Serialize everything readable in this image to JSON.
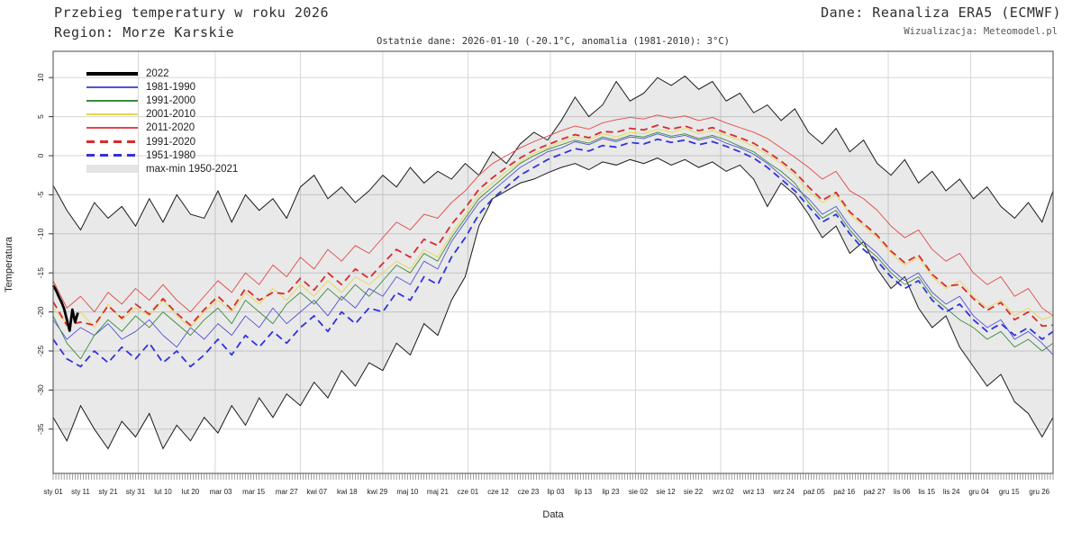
{
  "header": {
    "title_line1": "Przebieg temperatury w roku 2026",
    "title_line2": "Region: Morze Karskie",
    "source": "Dane: Reanaliza ERA5 (ECMWF)",
    "credit": "Wizualizacja: Meteomodel.pl"
  },
  "annotation": "Ostatnie dane: 2026-01-10 (-20.1°C, anomalia (1981-2010): 3°C)",
  "axes": {
    "ylabel": "Temperatura",
    "xlabel": "Data",
    "yticks": [
      10,
      5,
      0,
      -5,
      -10,
      -15,
      -20,
      -25,
      -30,
      -35
    ],
    "month_start_days": [
      32,
      60,
      91,
      121,
      152,
      182,
      213,
      244,
      274,
      305,
      335
    ],
    "xticks": [
      {
        "label": "sty 01",
        "day": 1
      },
      {
        "label": "sty 11",
        "day": 11
      },
      {
        "label": "sty 21",
        "day": 21
      },
      {
        "label": "sty 31",
        "day": 31
      },
      {
        "label": "lut 10",
        "day": 41
      },
      {
        "label": "lut 20",
        "day": 51
      },
      {
        "label": "mar 03",
        "day": 62
      },
      {
        "label": "mar 15",
        "day": 74
      },
      {
        "label": "mar 27",
        "day": 86
      },
      {
        "label": "kwi 07",
        "day": 97
      },
      {
        "label": "kwi 18",
        "day": 108
      },
      {
        "label": "kwi 29",
        "day": 119
      },
      {
        "label": "maj 10",
        "day": 130
      },
      {
        "label": "maj 21",
        "day": 141
      },
      {
        "label": "cze 01",
        "day": 152
      },
      {
        "label": "cze 12",
        "day": 163
      },
      {
        "label": "cze 23",
        "day": 174
      },
      {
        "label": "lip 03",
        "day": 184
      },
      {
        "label": "lip 13",
        "day": 194
      },
      {
        "label": "lip 23",
        "day": 204
      },
      {
        "label": "sie 02",
        "day": 214
      },
      {
        "label": "sie 12",
        "day": 224
      },
      {
        "label": "sie 22",
        "day": 234
      },
      {
        "label": "wrz 02",
        "day": 245
      },
      {
        "label": "wrz 13",
        "day": 256
      },
      {
        "label": "wrz 24",
        "day": 267
      },
      {
        "label": "paź 05",
        "day": 278
      },
      {
        "label": "paź 16",
        "day": 289
      },
      {
        "label": "paź 27",
        "day": 300
      },
      {
        "label": "lis 06",
        "day": 310
      },
      {
        "label": "lis 15",
        "day": 319
      },
      {
        "label": "lis 24",
        "day": 328
      },
      {
        "label": "gru 04",
        "day": 338
      },
      {
        "label": "gru 15",
        "day": 349
      },
      {
        "label": "gru 26",
        "day": 360
      }
    ]
  },
  "legend": [
    {
      "label": "2022",
      "color": "#000000",
      "style": "solid-thick"
    },
    {
      "label": "1981-1990",
      "color": "#5252d6",
      "style": "solid"
    },
    {
      "label": "1991-2000",
      "color": "#3a8a3c",
      "style": "solid"
    },
    {
      "label": "2001-2010",
      "color": "#e6d84f",
      "style": "solid"
    },
    {
      "label": "2011-2020",
      "color": "#e04848",
      "style": "solid"
    },
    {
      "label": "1991-2020",
      "color": "#d92b2b",
      "style": "dashed"
    },
    {
      "label": "1951-1980",
      "color": "#3232dd",
      "style": "dashed"
    },
    {
      "label": "max-min 1950-2021",
      "color": "#e4e4e4",
      "style": "band"
    }
  ],
  "chart_data": {
    "type": "line",
    "title": "Przebieg temperatury w roku 2026",
    "subtitle": "Region: Morze Karskie",
    "xlabel": "Data",
    "ylabel": "Temperatura",
    "x_unit": "day-of-year",
    "ylim": [
      -41,
      13
    ],
    "grid": "on",
    "legend_position": "upper-left",
    "x_days": [
      1,
      6,
      11,
      16,
      21,
      26,
      31,
      36,
      41,
      46,
      51,
      56,
      61,
      66,
      71,
      76,
      81,
      86,
      91,
      96,
      101,
      106,
      111,
      116,
      121,
      126,
      131,
      136,
      141,
      146,
      151,
      156,
      161,
      166,
      171,
      176,
      181,
      186,
      191,
      196,
      201,
      206,
      211,
      216,
      221,
      226,
      231,
      236,
      241,
      246,
      251,
      256,
      261,
      266,
      271,
      276,
      281,
      286,
      291,
      296,
      301,
      306,
      311,
      316,
      321,
      326,
      331,
      336,
      341,
      346,
      351,
      356,
      361,
      365
    ],
    "band": {
      "name": "max-min 1950-2021",
      "max": [
        -3.8,
        -7,
        -9.5,
        -6,
        -8,
        -6.5,
        -9,
        -5.5,
        -8.5,
        -5,
        -7.5,
        -8,
        -4.5,
        -8.5,
        -5,
        -7,
        -5.5,
        -8,
        -4,
        -2.5,
        -5.5,
        -4,
        -6,
        -4.5,
        -2.5,
        -4,
        -1.5,
        -3.5,
        -2,
        -3,
        -1,
        -2.5,
        0.5,
        -1,
        1.5,
        3,
        2,
        4.5,
        7.5,
        5,
        6.5,
        9.5,
        7,
        8,
        10,
        9,
        10.2,
        8.5,
        9.5,
        7,
        8,
        5.5,
        6.5,
        4.5,
        6,
        3,
        1.5,
        3.5,
        0.5,
        2,
        -1,
        -2.5,
        -0.5,
        -3.5,
        -2,
        -4.5,
        -3,
        -5.5,
        -4,
        -6.5,
        -8,
        -6,
        -8.5,
        -4.5
      ],
      "min": [
        -33.5,
        -36.5,
        -32,
        -35,
        -37.5,
        -34,
        -36,
        -33,
        -37.5,
        -34.5,
        -36.5,
        -33.5,
        -35.5,
        -32,
        -34.5,
        -31,
        -33.5,
        -30.5,
        -32,
        -29,
        -31,
        -27.5,
        -29.5,
        -26.5,
        -27.5,
        -24,
        -25.5,
        -21.5,
        -23,
        -18.5,
        -15.5,
        -9,
        -5.5,
        -4.5,
        -3.5,
        -3,
        -2.2,
        -1.5,
        -1,
        -1.8,
        -0.8,
        -1.2,
        -0.5,
        -1,
        -0.3,
        -1.2,
        -0.5,
        -1.5,
        -0.8,
        -2,
        -1.2,
        -3,
        -6.5,
        -3.5,
        -5,
        -7.5,
        -10.5,
        -9,
        -12.5,
        -11,
        -14.5,
        -17,
        -15.5,
        -19.5,
        -22,
        -20.5,
        -24.5,
        -27,
        -29.5,
        -28,
        -31.5,
        -33,
        -36,
        -33.5
      ]
    },
    "series": [
      {
        "name": "1981-1990",
        "color": "#5252d6",
        "style": "solid",
        "values": [
          -21,
          -23.5,
          -22,
          -23,
          -21.5,
          -23.5,
          -22.5,
          -21,
          -23,
          -24.5,
          -22,
          -23.5,
          -21.5,
          -23,
          -20.5,
          -22,
          -19.5,
          -21.5,
          -20,
          -18.5,
          -20.5,
          -18,
          -19.5,
          -17,
          -18,
          -15.5,
          -16.5,
          -13.5,
          -14.5,
          -11,
          -8.5,
          -6,
          -4.5,
          -3,
          -1.5,
          -0.5,
          0.5,
          1,
          1.8,
          1.4,
          2.2,
          1.8,
          2.4,
          2.2,
          2.8,
          2.3,
          2.6,
          2,
          2.4,
          1.6,
          1,
          0.2,
          -1,
          -2.5,
          -4,
          -5.5,
          -7.5,
          -6.5,
          -9,
          -11,
          -12.5,
          -14.5,
          -16,
          -15,
          -17.5,
          -19,
          -18,
          -20.5,
          -22,
          -21,
          -23.5,
          -22.5,
          -24,
          -25.5
        ]
      },
      {
        "name": "1991-2000",
        "color": "#3a8a3c",
        "style": "solid",
        "values": [
          -20.5,
          -24,
          -26,
          -23,
          -21,
          -22.5,
          -20.5,
          -22,
          -20,
          -21.5,
          -23,
          -21,
          -19.5,
          -21.5,
          -18.5,
          -20,
          -21.5,
          -19,
          -17.5,
          -19,
          -17,
          -18.5,
          -16.5,
          -18,
          -16,
          -14,
          -15,
          -12.5,
          -13.5,
          -10.5,
          -8,
          -5.5,
          -4,
          -2.5,
          -1,
          0,
          0.8,
          1.4,
          2,
          1.6,
          2.4,
          2,
          2.6,
          2.4,
          3,
          2.5,
          2.8,
          2.2,
          2.6,
          2,
          1.2,
          0.5,
          -0.8,
          -2,
          -3.5,
          -6,
          -8,
          -7,
          -9.5,
          -11.5,
          -13,
          -15,
          -16.5,
          -15.5,
          -18,
          -19.5,
          -21,
          -22,
          -23.5,
          -22.5,
          -24.5,
          -23.5,
          -25,
          -24
        ]
      },
      {
        "name": "2001-2010",
        "color": "#e6d84f",
        "style": "solid",
        "values": [
          -19.5,
          -21.5,
          -20,
          -22,
          -19,
          -21,
          -19.5,
          -20.5,
          -18.5,
          -20.5,
          -22,
          -20,
          -18.5,
          -20,
          -17.5,
          -19,
          -17,
          -18.5,
          -16.5,
          -18,
          -16,
          -17.5,
          -15.5,
          -16.5,
          -15,
          -13.5,
          -14.5,
          -12,
          -13,
          -10,
          -7.5,
          -5,
          -3.5,
          -2,
          -0.8,
          0.3,
          1,
          1.8,
          2.4,
          2,
          2.8,
          2.4,
          3,
          2.8,
          3.4,
          3,
          3.5,
          2.8,
          3.2,
          2.6,
          2,
          1.2,
          0.2,
          -1,
          -2.5,
          -4.5,
          -6,
          -5,
          -7.5,
          -9,
          -10.5,
          -12.5,
          -14,
          -13,
          -15.5,
          -17,
          -16,
          -18,
          -19.5,
          -18.5,
          -20.5,
          -19.5,
          -21,
          -20.5
        ]
      },
      {
        "name": "2011-2020",
        "color": "#e04848",
        "style": "solid",
        "values": [
          -16,
          -19.5,
          -18,
          -20,
          -17.5,
          -19,
          -17,
          -18.5,
          -16.5,
          -18.5,
          -20,
          -18,
          -16,
          -17.5,
          -15,
          -16.5,
          -14,
          -15.5,
          -13,
          -14.5,
          -12,
          -13.5,
          -11.5,
          -12.5,
          -10.5,
          -8.5,
          -9.5,
          -7.5,
          -8,
          -6,
          -4.5,
          -2.5,
          -1,
          0,
          1,
          1.8,
          2.5,
          3.2,
          3.8,
          3.4,
          4.2,
          4.6,
          4.9,
          4.7,
          5.2,
          4.8,
          5.1,
          4.5,
          4.9,
          4.2,
          3.6,
          3,
          2.2,
          1,
          -0.2,
          -1.5,
          -3,
          -2,
          -4.5,
          -5.5,
          -7,
          -9,
          -10.5,
          -9.5,
          -12,
          -13.5,
          -12.5,
          -15,
          -16.5,
          -15.5,
          -18,
          -17,
          -19.5,
          -20.5
        ]
      },
      {
        "name": "1991-2020",
        "color": "#d92b2b",
        "style": "dashed",
        "values": [
          -18.7,
          -21.7,
          -21.3,
          -21.7,
          -19.2,
          -20.8,
          -19,
          -20.3,
          -18.3,
          -20.2,
          -21.7,
          -19.7,
          -18,
          -19.7,
          -17,
          -18.5,
          -17.5,
          -17.7,
          -15.7,
          -17.2,
          -15,
          -16.5,
          -14.5,
          -15.7,
          -13.8,
          -12,
          -13,
          -10.7,
          -11.5,
          -8.8,
          -6.7,
          -4.3,
          -2.8,
          -1.5,
          -0.3,
          0.7,
          1.4,
          2.1,
          2.7,
          2.3,
          3.1,
          3,
          3.5,
          3.3,
          3.9,
          3.4,
          3.8,
          3.2,
          3.6,
          2.9,
          2.3,
          1.6,
          0.5,
          -0.7,
          -2.1,
          -4,
          -5.7,
          -4.7,
          -7.2,
          -8.7,
          -10.2,
          -12.2,
          -13.7,
          -12.7,
          -15.2,
          -16.7,
          -16.5,
          -18.3,
          -19.8,
          -18.8,
          -21,
          -20,
          -21.8,
          -21.7
        ]
      },
      {
        "name": "1951-1980",
        "color": "#3232dd",
        "style": "dashed",
        "values": [
          -23.5,
          -26,
          -27,
          -25,
          -26.5,
          -24.5,
          -26,
          -24,
          -26.5,
          -25,
          -27,
          -25.5,
          -23.5,
          -25.5,
          -23,
          -24.5,
          -22.5,
          -24,
          -22,
          -20.5,
          -22.5,
          -20,
          -21.5,
          -19.5,
          -20,
          -17.5,
          -18.5,
          -15.5,
          -16.5,
          -13,
          -10.5,
          -7.5,
          -5.5,
          -4,
          -2.5,
          -1.5,
          -0.5,
          0.2,
          0.9,
          0.6,
          1.3,
          1.1,
          1.7,
          1.5,
          2.1,
          1.7,
          2,
          1.4,
          1.8,
          1.2,
          0.5,
          -0.3,
          -1.5,
          -3,
          -4.5,
          -6.5,
          -8.5,
          -7.5,
          -10,
          -12,
          -13.5,
          -15.5,
          -17,
          -16,
          -18.5,
          -20,
          -19,
          -21,
          -22.5,
          -21.5,
          -23,
          -22,
          -23.5,
          -22.5
        ]
      },
      {
        "name": "2022",
        "color": "#000000",
        "style": "solid-thick",
        "days": [
          1,
          2,
          3,
          4,
          5,
          6,
          7,
          8,
          9,
          10
        ],
        "values": [
          -16.6,
          -17.2,
          -18.0,
          -18.7,
          -19.6,
          -21.0,
          -22.4,
          -19.7,
          -21.3,
          -20.1
        ]
      }
    ]
  }
}
